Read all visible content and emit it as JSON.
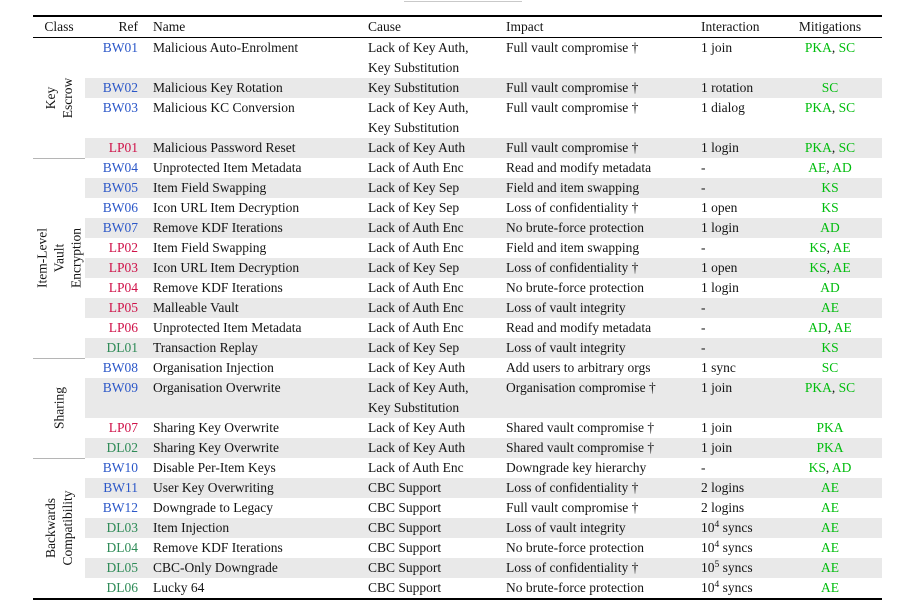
{
  "table": {
    "columns": [
      {
        "key": "class",
        "label": "Class"
      },
      {
        "key": "ref",
        "label": "Ref"
      },
      {
        "key": "name",
        "label": "Name"
      },
      {
        "key": "cause",
        "label": "Cause"
      },
      {
        "key": "impact",
        "label": "Impact"
      },
      {
        "key": "interaction",
        "label": "Interaction"
      },
      {
        "key": "mitigations",
        "label": "Mitigations"
      }
    ],
    "colors": {
      "BW": "#2b57c8",
      "LP": "#cf1249",
      "DL": "#2e8b57",
      "mitigation": "#00bd0d",
      "row_alt": "#e9e9e9"
    },
    "groups": [
      {
        "label_lines": [
          "Key",
          "Escrow"
        ],
        "rows": [
          {
            "ref": "BW01",
            "name": "Malicious Auto-Enrolment",
            "cause": [
              "Lack of Key Auth,",
              "Key Substitution"
            ],
            "impact": "Full vault compromise †",
            "interaction": "1 join",
            "mitigations": [
              "PKA",
              "SC"
            ]
          },
          {
            "ref": "BW02",
            "name": "Malicious Key Rotation",
            "cause": [
              "Key Substitution"
            ],
            "impact": "Full vault compromise †",
            "interaction": "1 rotation",
            "mitigations": [
              "SC"
            ]
          },
          {
            "ref": "BW03",
            "name": "Malicious KC Conversion",
            "cause": [
              "Lack of Key Auth,",
              "Key Substitution"
            ],
            "impact": "Full vault compromise †",
            "interaction": "1 dialog",
            "mitigations": [
              "PKA",
              "SC"
            ]
          },
          {
            "ref": "LP01",
            "name": "Malicious Password Reset",
            "cause": [
              "Lack of Key Auth"
            ],
            "impact": "Full vault compromise †",
            "interaction": "1 login",
            "mitigations": [
              "PKA",
              "SC"
            ]
          }
        ]
      },
      {
        "label_lines": [
          "Item-Level",
          "Vault Encryption"
        ],
        "rows": [
          {
            "ref": "BW04",
            "name": "Unprotected Item Metadata",
            "cause": [
              "Lack of Auth Enc"
            ],
            "impact": "Read and modify metadata",
            "interaction": "-",
            "mitigations": [
              "AE",
              "AD"
            ]
          },
          {
            "ref": "BW05",
            "name": "Item Field Swapping",
            "cause": [
              "Lack of Key Sep"
            ],
            "impact": "Field and item swapping",
            "interaction": "-",
            "mitigations": [
              "KS"
            ]
          },
          {
            "ref": "BW06",
            "name": "Icon URL Item Decryption",
            "cause": [
              "Lack of Key Sep"
            ],
            "impact": "Loss of confidentiality †",
            "interaction": "1 open",
            "mitigations": [
              "KS"
            ]
          },
          {
            "ref": "BW07",
            "name": "Remove KDF Iterations",
            "cause": [
              "Lack of Auth Enc"
            ],
            "impact": "No brute-force protection",
            "interaction": "1 login",
            "mitigations": [
              "AD"
            ]
          },
          {
            "ref": "LP02",
            "name": "Item Field Swapping",
            "cause": [
              "Lack of Auth Enc"
            ],
            "impact": "Field and item swapping",
            "interaction": "-",
            "mitigations": [
              "KS",
              "AE"
            ]
          },
          {
            "ref": "LP03",
            "name": "Icon URL Item Decryption",
            "cause": [
              "Lack of Key Sep"
            ],
            "impact": "Loss of confidentiality †",
            "interaction": "1 open",
            "mitigations": [
              "KS",
              "AE"
            ]
          },
          {
            "ref": "LP04",
            "name": "Remove KDF Iterations",
            "cause": [
              "Lack of Auth Enc"
            ],
            "impact": "No brute-force protection",
            "interaction": "1 login",
            "mitigations": [
              "AD"
            ]
          },
          {
            "ref": "LP05",
            "name": "Malleable Vault",
            "cause": [
              "Lack of Auth Enc"
            ],
            "impact": "Loss of vault integrity",
            "interaction": "-",
            "mitigations": [
              "AE"
            ]
          },
          {
            "ref": "LP06",
            "name": "Unprotected Item Metadata",
            "cause": [
              "Lack of Auth Enc"
            ],
            "impact": "Read and modify metadata",
            "interaction": "-",
            "mitigations": [
              "AD",
              "AE"
            ]
          },
          {
            "ref": "DL01",
            "name": "Transaction Replay",
            "cause": [
              "Lack of Key Sep"
            ],
            "impact": "Loss of vault integrity",
            "interaction": "-",
            "mitigations": [
              "KS"
            ]
          }
        ]
      },
      {
        "label_lines": [
          "Sharing"
        ],
        "rows": [
          {
            "ref": "BW08",
            "name": "Organisation Injection",
            "cause": [
              "Lack of Key Auth"
            ],
            "impact": "Add users to arbitrary orgs",
            "interaction": "1 sync",
            "mitigations": [
              "SC"
            ]
          },
          {
            "ref": "BW09",
            "name": "Organisation Overwrite",
            "cause": [
              "Lack of Key Auth,",
              "Key Substitution"
            ],
            "impact": "Organisation compromise †",
            "interaction": "1 join",
            "mitigations": [
              "PKA",
              "SC"
            ]
          },
          {
            "ref": "LP07",
            "name": "Sharing Key Overwrite",
            "cause": [
              "Lack of Key Auth"
            ],
            "impact": "Shared vault compromise †",
            "interaction": "1 join",
            "mitigations": [
              "PKA"
            ]
          },
          {
            "ref": "DL02",
            "name": "Sharing Key Overwrite",
            "cause": [
              "Lack of Key Auth"
            ],
            "impact": "Shared vault compromise †",
            "interaction": "1 join",
            "mitigations": [
              "PKA"
            ]
          }
        ]
      },
      {
        "label_lines": [
          "Backwards",
          "Compatibility"
        ],
        "rows": [
          {
            "ref": "BW10",
            "name": "Disable Per-Item Keys",
            "cause": [
              "Lack of Auth Enc"
            ],
            "impact": "Downgrade key hierarchy",
            "interaction": "-",
            "mitigations": [
              "KS",
              "AD"
            ]
          },
          {
            "ref": "BW11",
            "name": "User Key Overwriting",
            "cause": [
              "CBC Support"
            ],
            "impact": "Loss of confidentiality †",
            "interaction": "2 logins",
            "mitigations": [
              "AE"
            ]
          },
          {
            "ref": "BW12",
            "name": "Downgrade to Legacy",
            "cause": [
              "CBC Support"
            ],
            "impact": "Full vault compromise †",
            "interaction": "2 logins",
            "mitigations": [
              "AE"
            ]
          },
          {
            "ref": "DL03",
            "name": "Item Injection",
            "cause": [
              "CBC Support"
            ],
            "impact": "Loss of vault integrity",
            "interaction": "10^4 syncs",
            "mitigations": [
              "AE"
            ]
          },
          {
            "ref": "DL04",
            "name": "Remove KDF Iterations",
            "cause": [
              "CBC Support"
            ],
            "impact": "No brute-force protection",
            "interaction": "10^4 syncs",
            "mitigations": [
              "AE"
            ]
          },
          {
            "ref": "DL05",
            "name": "CBC-Only Downgrade",
            "cause": [
              "CBC Support"
            ],
            "impact": "Loss of confidentiality †",
            "interaction": "10^5 syncs",
            "mitigations": [
              "AE"
            ]
          },
          {
            "ref": "DL06",
            "name": "Lucky 64",
            "cause": [
              "CBC Support"
            ],
            "impact": "No brute-force protection",
            "interaction": "10^4 syncs",
            "mitigations": [
              "AE"
            ]
          }
        ]
      }
    ]
  }
}
